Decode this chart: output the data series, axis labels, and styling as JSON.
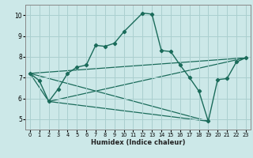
{
  "xlabel": "Humidex (Indice chaleur)",
  "bg_color": "#cce8e8",
  "grid_color": "#aacfcf",
  "line_color": "#1a6b5a",
  "xlim": [
    -0.5,
    23.5
  ],
  "ylim": [
    4.5,
    10.5
  ],
  "xticks": [
    0,
    1,
    2,
    3,
    4,
    5,
    6,
    7,
    8,
    9,
    10,
    11,
    12,
    13,
    14,
    15,
    16,
    17,
    18,
    19,
    20,
    21,
    22,
    23
  ],
  "yticks": [
    5,
    6,
    7,
    8,
    9,
    10
  ],
  "series": [
    [
      0,
      7.2
    ],
    [
      1,
      6.85
    ],
    [
      2,
      5.85
    ],
    [
      3,
      6.45
    ],
    [
      4,
      7.2
    ],
    [
      5,
      7.5
    ],
    [
      6,
      7.6
    ],
    [
      7,
      8.55
    ],
    [
      8,
      8.5
    ],
    [
      9,
      8.65
    ],
    [
      10,
      9.2
    ],
    [
      12,
      10.1
    ],
    [
      13,
      10.05
    ],
    [
      14,
      8.3
    ],
    [
      15,
      8.25
    ],
    [
      16,
      7.6
    ],
    [
      17,
      7.0
    ],
    [
      18,
      6.35
    ],
    [
      19,
      4.9
    ],
    [
      20,
      6.9
    ],
    [
      21,
      6.95
    ],
    [
      22,
      7.75
    ],
    [
      23,
      7.95
    ]
  ],
  "tri_line1": [
    [
      0,
      7.2
    ],
    [
      19,
      4.9
    ]
  ],
  "tri_line2": [
    [
      0,
      7.2
    ],
    [
      23,
      7.95
    ]
  ],
  "tri_line3": [
    [
      2,
      5.85
    ],
    [
      23,
      7.95
    ]
  ],
  "tri_line4": [
    [
      2,
      5.85
    ],
    [
      19,
      4.9
    ]
  ],
  "tri_line5": [
    [
      0,
      7.2
    ],
    [
      2,
      5.85
    ]
  ]
}
